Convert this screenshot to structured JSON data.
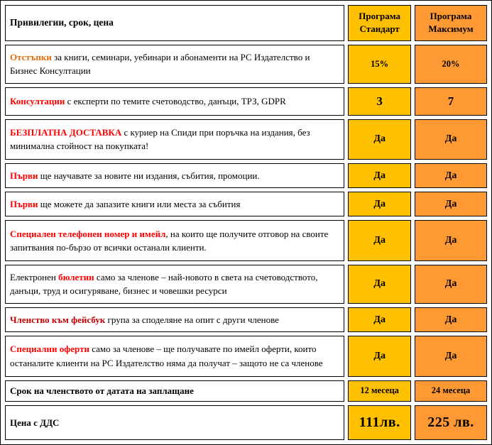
{
  "table": {
    "header": {
      "col1": "Привилегии, срок, цена",
      "col2": "Програма Стандарт",
      "col3": "Програма Максимум"
    },
    "colors": {
      "standard_bg": "#FFC000",
      "maximum_bg": "#FF9933",
      "red": "#FF0000",
      "orangered": "#E36C0A",
      "darkred": "#C00000",
      "border": "#000000"
    },
    "rows": [
      {
        "segments": [
          {
            "text": "Отстъпки",
            "style": "orangered"
          },
          {
            "text": " за книги, семинари, уебинари и абонаменти на РС Издателство и Бизнес Консултации",
            "style": "plain"
          }
        ],
        "standard": "15%",
        "maximum": "20%",
        "value_size": "sm"
      },
      {
        "segments": [
          {
            "text": "Консултации",
            "style": "red"
          },
          {
            "text": " с експерти по темите счетоводство, данъци, ТРЗ, GDPR",
            "style": "plain"
          }
        ],
        "standard": "3",
        "maximum": "7",
        "value_size": "lg"
      },
      {
        "segments": [
          {
            "text": "БЕЗПЛАТНА ДОСТАВКА",
            "style": "red"
          },
          {
            "text": "  с куриер на Спиди при поръчка на издания, без минимална стойност на покупката!",
            "style": "plain"
          }
        ],
        "standard": "Да",
        "maximum": "Да",
        "value_size": "md"
      },
      {
        "segments": [
          {
            "text": "Първи",
            "style": "red"
          },
          {
            "text": " ще научавате за новите ни издания, събития, промоции.",
            "style": "plain"
          }
        ],
        "standard": "Да",
        "maximum": "Да",
        "value_size": "md"
      },
      {
        "segments": [
          {
            "text": "Първи",
            "style": "red"
          },
          {
            "text": " ще можете да запазите книги или места за събития",
            "style": "plain"
          }
        ],
        "standard": "Да",
        "maximum": "Да",
        "value_size": "md"
      },
      {
        "segments": [
          {
            "text": "Специален телефонен номер и имейл",
            "style": "red"
          },
          {
            "text": ", на които ще получите отговор на своите запитвания по-бързо от всички останали клиенти.",
            "style": "plain"
          }
        ],
        "standard": "Да",
        "maximum": "Да",
        "value_size": "md"
      },
      {
        "segments": [
          {
            "text": "Електронен ",
            "style": "plain"
          },
          {
            "text": "бюлетин",
            "style": "red"
          },
          {
            "text": " само за членове – най-новото в света на счетоводството, данъци, труд и осигуряване, бизнес и човешки ресурси",
            "style": "plain"
          }
        ],
        "standard": "Да",
        "maximum": "Да",
        "value_size": "md"
      },
      {
        "segments": [
          {
            "text": "Членство към фейсбук",
            "style": "darkred"
          },
          {
            "text": " група за споделяне на опит с други членове",
            "style": "plain"
          }
        ],
        "standard": "Да",
        "maximum": "Да",
        "value_size": "md"
      },
      {
        "segments": [
          {
            "text": "Специални оферти",
            "style": "red"
          },
          {
            "text": " само за членове – ще получавате по имейл оферти, които останалите клиенти на РС Издателство няма да получат – защото не са членове",
            "style": "plain"
          }
        ],
        "standard": "Да",
        "maximum": "Да",
        "value_size": "md"
      },
      {
        "segments": [
          {
            "text": "Срок на членството от датата на заплащане",
            "style": "bold"
          }
        ],
        "standard": "12 месеца",
        "maximum": "24 месеца",
        "value_size": "sm"
      },
      {
        "segments": [
          {
            "text": "Цена с ДДС",
            "style": "bold"
          }
        ],
        "standard": "111лв.",
        "maximum": "225 лв.",
        "value_size": "xl"
      }
    ]
  }
}
